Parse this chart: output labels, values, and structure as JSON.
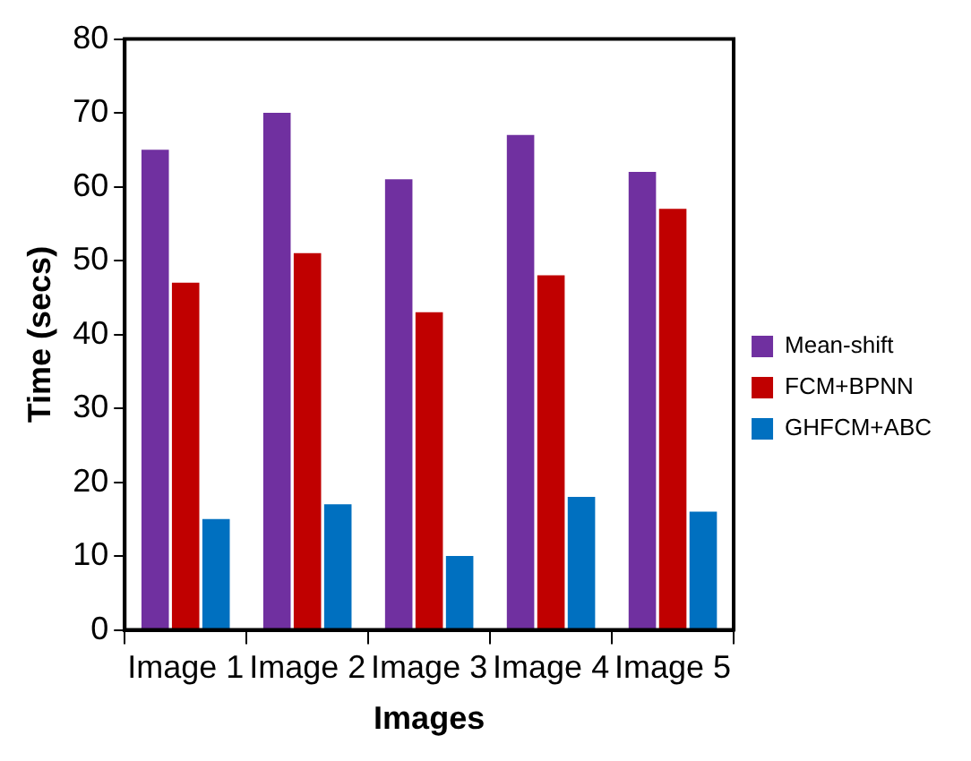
{
  "chart_data": {
    "type": "bar",
    "xlabel": "Images",
    "ylabel": "Time (secs)",
    "categories": [
      "Image 1",
      "Image 2",
      "Image 3",
      "Image 4",
      "Image 5"
    ],
    "series": [
      {
        "name": "Mean-shift",
        "color": "#7030a0",
        "values": [
          65,
          70,
          61,
          67,
          62
        ]
      },
      {
        "name": "FCM+BPNN",
        "color": "#c00000",
        "values": [
          47,
          51,
          43,
          48,
          57
        ]
      },
      {
        "name": "GHFCM+ABC",
        "color": "#0070c0",
        "values": [
          15,
          17,
          10,
          18,
          16
        ]
      }
    ],
    "ylim": [
      0,
      80
    ],
    "yticks": [
      0,
      10,
      20,
      30,
      40,
      50,
      60,
      70,
      80
    ],
    "grid": false,
    "legend": "right"
  }
}
